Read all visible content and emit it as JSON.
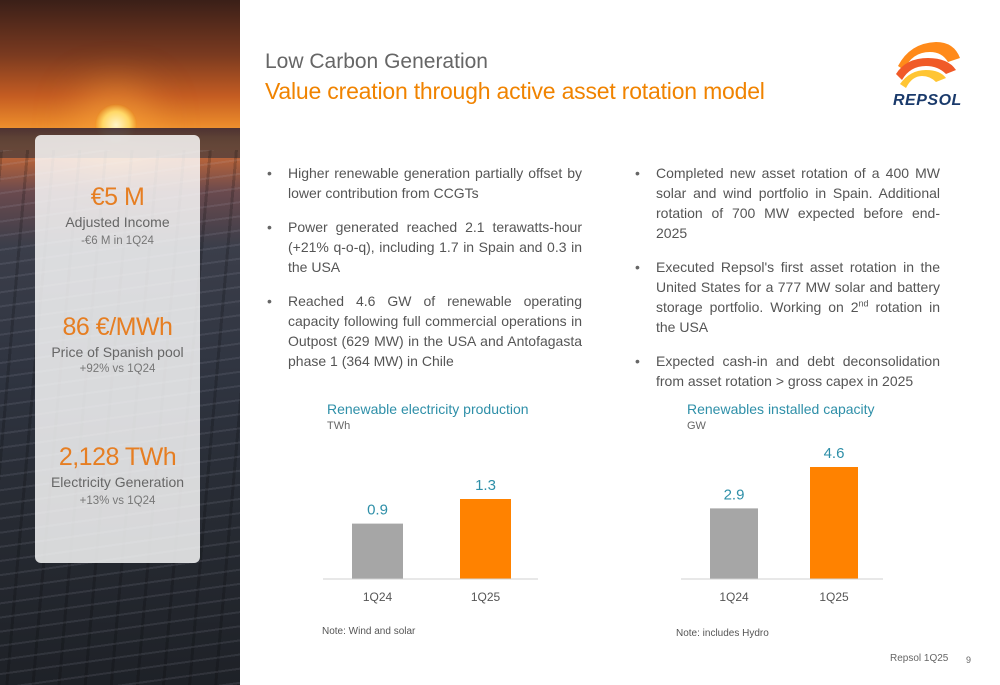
{
  "header": {
    "section": "Low Carbon Generation",
    "title": "Value creation through active asset rotation model"
  },
  "logo": {
    "wordmark": "REPSOL",
    "icon": "repsol-logo-icon"
  },
  "kpis": [
    {
      "value": "€5 M",
      "label": "Adjusted Income",
      "sub": "-€6 M in 1Q24"
    },
    {
      "value": "86 €/MWh",
      "label": "Price of Spanish pool",
      "sub": "+92% vs 1Q24"
    },
    {
      "value": "2,128 TWh",
      "label": "Electricity Generation",
      "sub": "+13% vs 1Q24"
    }
  ],
  "bullets_left": [
    {
      "text": "Higher renewable generation partially offset by lower contribution from CCGTs"
    },
    {
      "text": "Power generated reached 2.1 terawatts-hour (+21% q-o-q), including 1.7 in Spain and 0.3 in the USA"
    },
    {
      "text": "Reached 4.6 GW of renewable operating capacity following full commercial operations in Outpost (629 MW) in the USA and Antofagasta phase 1 (364 MW) in Chile"
    }
  ],
  "bullets_right": [
    {
      "text": "Completed new asset rotation of a 400 MW solar and wind portfolio in Spain. Additional rotation of 700 MW expected before end-2025"
    },
    {
      "text_before": "Executed Repsol's first asset rotation in the United States for a 777 MW solar and battery storage portfolio. Working on 2",
      "sup": "nd",
      "text_after": " rotation in the USA"
    },
    {
      "text": "Expected cash-in and debt deconsolidation from asset rotation > gross capex in 2025"
    }
  ],
  "chart_data": [
    {
      "type": "bar",
      "title": "Renewable electricity production",
      "ylabel": "TWh",
      "categories": [
        "1Q24",
        "1Q25"
      ],
      "values": [
        0.9,
        1.3
      ],
      "data_labels": [
        "0.9",
        "1.3"
      ],
      "colors": [
        "#a6a6a6",
        "#ff8200"
      ],
      "ylim": [
        0,
        1.3
      ],
      "note": "Note: Wind and solar"
    },
    {
      "type": "bar",
      "title": "Renewables installed capacity",
      "ylabel": "GW",
      "categories": [
        "1Q24",
        "1Q25"
      ],
      "values": [
        2.9,
        4.6
      ],
      "data_labels": [
        "2.9",
        "4.6"
      ],
      "colors": [
        "#a6a6a6",
        "#ff8200"
      ],
      "ylim": [
        0,
        4.6
      ],
      "note": "Note: includes Hydro"
    }
  ],
  "footer": {
    "source": "Repsol 1Q25",
    "page": "9"
  },
  "colors": {
    "accent": "#f08300",
    "chart_title": "#2e8fa8",
    "data_label": "#2e8fa8",
    "logo_blue": "#1a3a6b"
  }
}
